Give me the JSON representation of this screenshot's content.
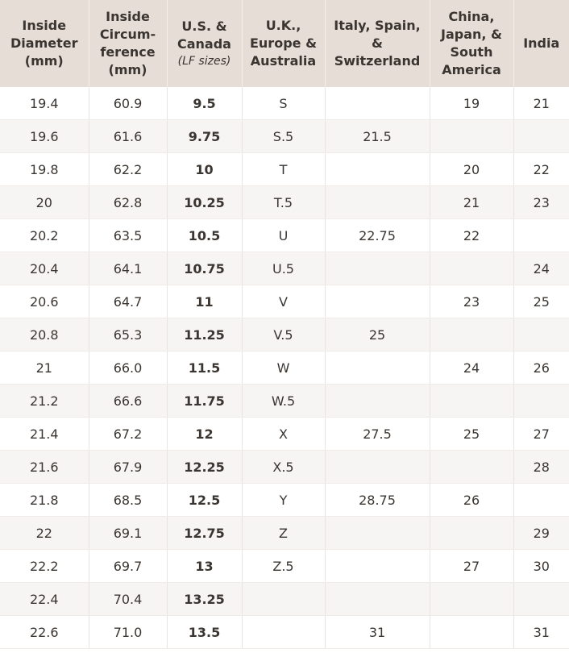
{
  "headers": [
    {
      "lines": [
        "Inside",
        "Diameter",
        "(mm)"
      ]
    },
    {
      "lines": [
        "Inside",
        "Circum-",
        "ference",
        "(mm)"
      ]
    },
    {
      "lines": [
        "U.S. &",
        "Canada"
      ],
      "sub": "(LF sizes)"
    },
    {
      "lines": [
        "U.K.,",
        "Europe &",
        "Australia"
      ]
    },
    {
      "lines": [
        "Italy, Spain,",
        "&",
        "Switzerland"
      ]
    },
    {
      "lines": [
        "China,",
        "Japan, &",
        "South",
        "America"
      ]
    },
    {
      "lines": [
        "India"
      ]
    }
  ],
  "rows": [
    [
      "19.4",
      "60.9",
      "9.5",
      "S",
      "",
      "19",
      "21"
    ],
    [
      "19.6",
      "61.6",
      "9.75",
      "S.5",
      "21.5",
      "",
      ""
    ],
    [
      "19.8",
      "62.2",
      "10",
      "T",
      "",
      "20",
      "22"
    ],
    [
      "20",
      "62.8",
      "10.25",
      "T.5",
      "",
      "21",
      "23"
    ],
    [
      "20.2",
      "63.5",
      "10.5",
      "U",
      "22.75",
      "22",
      ""
    ],
    [
      "20.4",
      "64.1",
      "10.75",
      "U.5",
      "",
      "",
      "24"
    ],
    [
      "20.6",
      "64.7",
      "11",
      "V",
      "",
      "23",
      "25"
    ],
    [
      "20.8",
      "65.3",
      "11.25",
      "V.5",
      "25",
      "",
      ""
    ],
    [
      "21",
      "66.0",
      "11.5",
      "W",
      "",
      "24",
      "26"
    ],
    [
      "21.2",
      "66.6",
      "11.75",
      "W.5",
      "",
      "",
      ""
    ],
    [
      "21.4",
      "67.2",
      "12",
      "X",
      "27.5",
      "25",
      "27"
    ],
    [
      "21.6",
      "67.9",
      "12.25",
      "X.5",
      "",
      "",
      "28"
    ],
    [
      "21.8",
      "68.5",
      "12.5",
      "Y",
      "28.75",
      "26",
      ""
    ],
    [
      "22",
      "69.1",
      "12.75",
      "Z",
      "",
      "",
      "29"
    ],
    [
      "22.2",
      "69.7",
      "13",
      "Z.5",
      "",
      "27",
      "30"
    ],
    [
      "22.4",
      "70.4",
      "13.25",
      "",
      "",
      "",
      ""
    ],
    [
      "22.6",
      "71.0",
      "13.5",
      "",
      "31",
      "",
      "31"
    ]
  ]
}
